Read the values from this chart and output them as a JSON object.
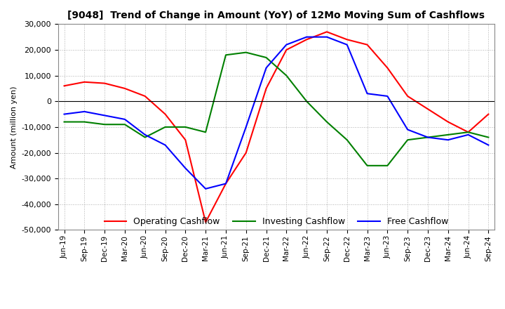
{
  "title": "[9048]  Trend of Change in Amount (YoY) of 12Mo Moving Sum of Cashflows",
  "ylabel": "Amount (million yen)",
  "background_color": "#ffffff",
  "grid_color": "#b0b0b0",
  "ylim": [
    -50000,
    30000
  ],
  "yticks": [
    -50000,
    -40000,
    -30000,
    -20000,
    -10000,
    0,
    10000,
    20000,
    30000
  ],
  "x_labels": [
    "Jun-19",
    "Sep-19",
    "Dec-19",
    "Mar-20",
    "Jun-20",
    "Sep-20",
    "Dec-20",
    "Mar-21",
    "Jun-21",
    "Sep-21",
    "Dec-21",
    "Mar-22",
    "Jun-22",
    "Sep-22",
    "Dec-22",
    "Mar-23",
    "Jun-23",
    "Sep-23",
    "Dec-23",
    "Mar-24",
    "Jun-24",
    "Sep-24"
  ],
  "operating": [
    6000,
    7500,
    7000,
    5000,
    2000,
    -5000,
    -15000,
    -47000,
    -32000,
    -20000,
    5000,
    20000,
    24000,
    27000,
    24000,
    22000,
    13000,
    2000,
    -3000,
    -8000,
    -12000,
    -5000
  ],
  "investing": [
    -8000,
    -8000,
    -9000,
    -9000,
    -14000,
    -10000,
    -10000,
    -12000,
    18000,
    19000,
    17000,
    10000,
    0,
    -8000,
    -15000,
    -25000,
    -25000,
    -15000,
    -14000,
    -13000,
    -12000,
    -14000
  ],
  "free": [
    -5000,
    -4000,
    -5500,
    -7000,
    -13000,
    -17000,
    -26000,
    -34000,
    -32000,
    -10000,
    13000,
    22000,
    25000,
    25000,
    22000,
    3000,
    2000,
    -11000,
    -14000,
    -15000,
    -13000,
    -17000
  ],
  "operating_color": "#ff0000",
  "investing_color": "#008000",
  "free_color": "#0000ff",
  "legend_labels": [
    "Operating Cashflow",
    "Investing Cashflow",
    "Free Cashflow"
  ]
}
